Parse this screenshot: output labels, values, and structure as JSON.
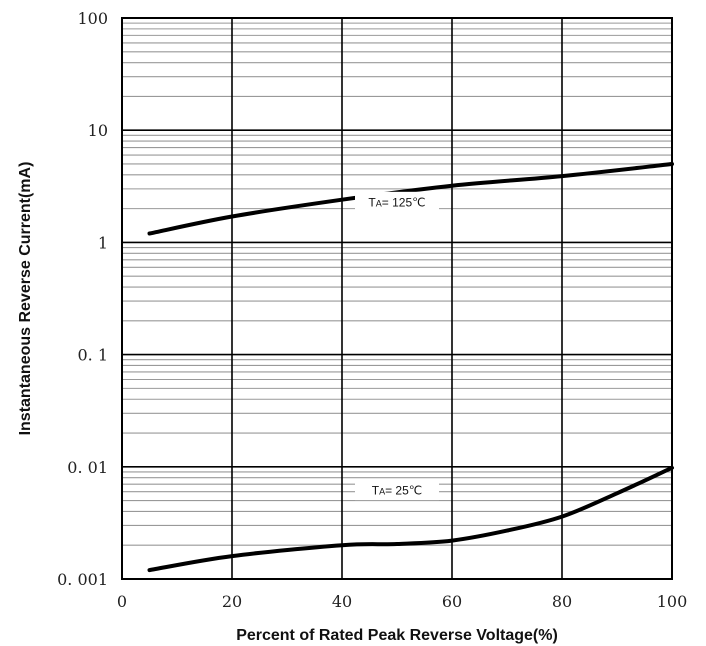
{
  "chart_data": {
    "type": "line",
    "title": "",
    "xlabel": "Percent  of Rated Peak Reverse Voltage(%)",
    "ylabel": "Instantaneous Reverse  Current(mA)",
    "xlim": [
      0,
      100
    ],
    "ylim": [
      0.001,
      100
    ],
    "yscale": "log",
    "grid": true,
    "x_ticks": [
      0,
      20,
      40,
      60,
      80,
      100
    ],
    "x_tick_labels": [
      "0",
      "20",
      "40",
      "60",
      "80",
      "100"
    ],
    "y_ticks": [
      100,
      10,
      1,
      0.1,
      0.01,
      0.001
    ],
    "y_tick_labels": [
      "100",
      "10",
      "1",
      "0. 1",
      "0. 01",
      "0. 001"
    ],
    "series": [
      {
        "label": "TA=125°C",
        "label_main": "T",
        "label_sub": "A",
        "label_rest": "= 125℃",
        "label_at": [
          50,
          2.3
        ],
        "color": "#000000",
        "points": [
          [
            5,
            1.2
          ],
          [
            20,
            1.7
          ],
          [
            40,
            2.4
          ],
          [
            60,
            3.2
          ],
          [
            80,
            3.9
          ],
          [
            100,
            5.0
          ]
        ]
      },
      {
        "label": "TA=25°C",
        "label_main": "T",
        "label_sub": "A",
        "label_rest": "= 25℃",
        "label_at": [
          50,
          0.0062
        ],
        "color": "#000000",
        "points": [
          [
            5,
            0.0012
          ],
          [
            20,
            0.0016
          ],
          [
            40,
            0.002
          ],
          [
            50,
            0.00205
          ],
          [
            60,
            0.0022
          ],
          [
            70,
            0.0027
          ],
          [
            80,
            0.0036
          ],
          [
            90,
            0.0058
          ],
          [
            100,
            0.0098
          ]
        ]
      }
    ]
  }
}
